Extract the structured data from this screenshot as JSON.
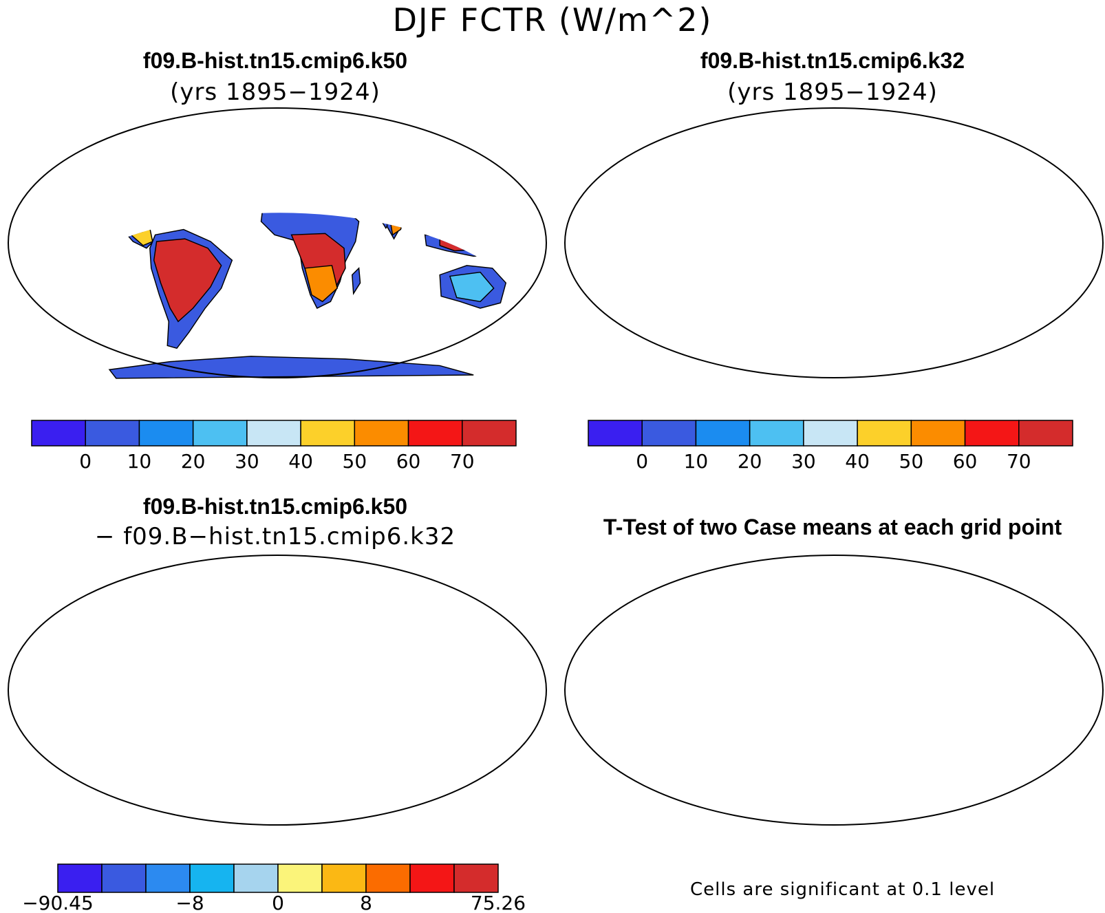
{
  "title": "DJF FCTR (W/m^2)",
  "panels": {
    "top_left": {
      "title": "f09.B-hist.tn15.cmip6.k50",
      "subtitle": "(yrs 1895−1924)"
    },
    "top_right": {
      "title": "f09.B-hist.tn15.cmip6.k32",
      "subtitle": "(yrs 1895−1924)"
    },
    "bottom_left": {
      "title": "f09.B-hist.tn15.cmip6.k50",
      "subtitle": "− f09.B−hist.tn15.cmip6.k32"
    },
    "bottom_right": {
      "title": "T-Test of two Case means at each grid point",
      "note": "Cells are significant at 0.1 level"
    }
  },
  "colorbars": {
    "case": {
      "colors": [
        "#3a1ff0",
        "#3a5ae0",
        "#1b8cf0",
        "#4dc0f2",
        "#c8e6f5",
        "#fcd02a",
        "#fb8c00",
        "#f41616",
        "#d42c2c"
      ],
      "ticks": [
        "0",
        "10",
        "20",
        "30",
        "40",
        "50",
        "60",
        "70"
      ]
    },
    "diff": {
      "colors": [
        "#3a1ff0",
        "#3a5ae0",
        "#2c8af0",
        "#16b4f0",
        "#a6d4ee",
        "#fbf47a",
        "#fbb814",
        "#fb6c00",
        "#f41616",
        "#d42c2c"
      ],
      "ticks": [
        "−90.45",
        "−8",
        "0",
        "8",
        "75.26"
      ]
    }
  },
  "map_fill_colors": {
    "case_land": "#3a5ae0",
    "case_tropics_hot": "#d42c2c",
    "case_warm": "#fb8c00",
    "case_mid": "#fcd02a",
    "diff_base": "#fbf47a",
    "diff_cool": "#a6d4ee",
    "diff_neg": "#3a5ae0",
    "ttest_significant": "#f41616"
  }
}
